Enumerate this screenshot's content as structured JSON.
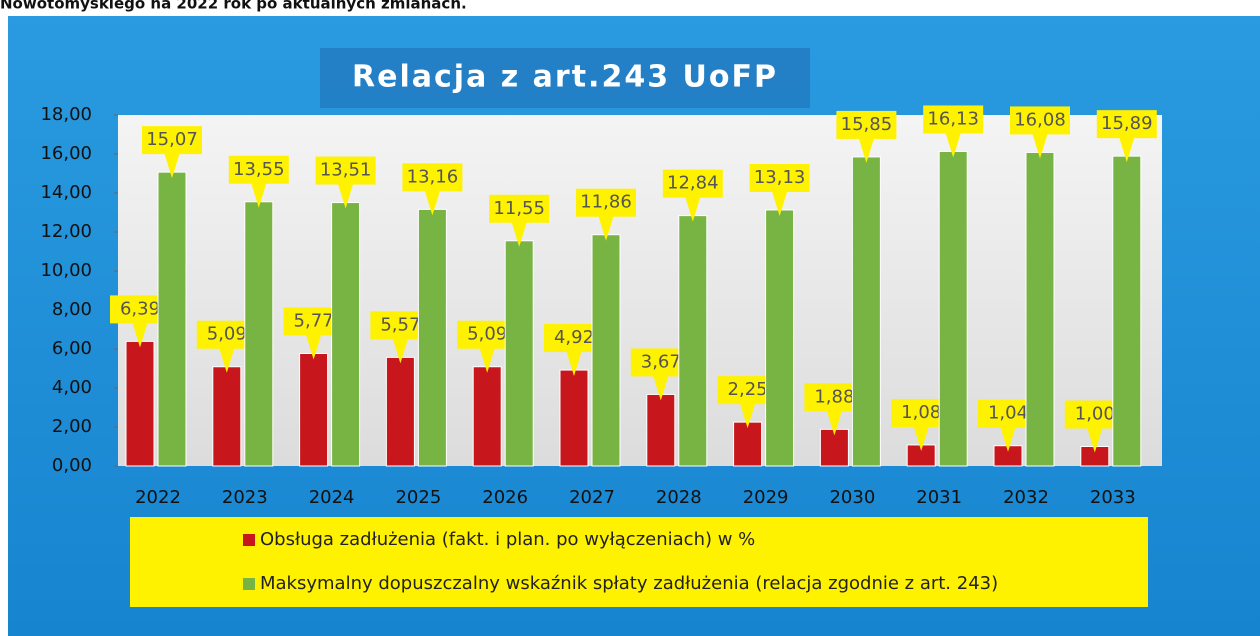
{
  "caption": "Nowotomyskiego na 2022 rok po aktualnych zmianach.",
  "chart_data": {
    "type": "bar",
    "title": "Relacja z art.243 UoFP",
    "categories": [
      "2022",
      "2023",
      "2024",
      "2025",
      "2026",
      "2027",
      "2028",
      "2029",
      "2030",
      "2031",
      "2032",
      "2033"
    ],
    "series": [
      {
        "name": "Obsługa zadłużenia (fakt. i plan. po wyłączeniach) w %",
        "color": "#c8161d",
        "values": [
          6.39,
          5.09,
          5.77,
          5.57,
          5.09,
          4.92,
          3.67,
          2.25,
          1.88,
          1.08,
          1.04,
          1.0
        ],
        "value_labels": [
          "6,39",
          "5,09",
          "5,77",
          "5,57",
          "5,09",
          "4,92",
          "3,67",
          "2,25",
          "1,88",
          "1,08",
          "1,04",
          "1,00"
        ]
      },
      {
        "name": "Maksymalny dopuszczalny wskaźnik spłaty  zadłużenia (relacja zgodnie z art. 243)",
        "color": "#78b443",
        "values": [
          15.07,
          13.55,
          13.51,
          13.16,
          11.55,
          11.86,
          12.84,
          13.13,
          15.85,
          16.13,
          16.08,
          15.89
        ],
        "value_labels": [
          "15,07",
          "13,55",
          "13,51",
          "13,16",
          "11,55",
          "11,86",
          "12,84",
          "13,13",
          "15,85",
          "16,13",
          "16,08",
          "15,89"
        ]
      }
    ],
    "ylim": [
      0,
      18
    ],
    "yticks": [
      {
        "value": 0,
        "label": "0,00"
      },
      {
        "value": 2,
        "label": "2,00"
      },
      {
        "value": 4,
        "label": "4,00"
      },
      {
        "value": 6,
        "label": "6,00"
      },
      {
        "value": 8,
        "label": "8,00"
      },
      {
        "value": 10,
        "label": "10,00"
      },
      {
        "value": 12,
        "label": "12,00"
      },
      {
        "value": 14,
        "label": "14,00"
      },
      {
        "value": 16,
        "label": "16,00"
      },
      {
        "value": 18,
        "label": "18,00"
      }
    ],
    "grid": false
  }
}
